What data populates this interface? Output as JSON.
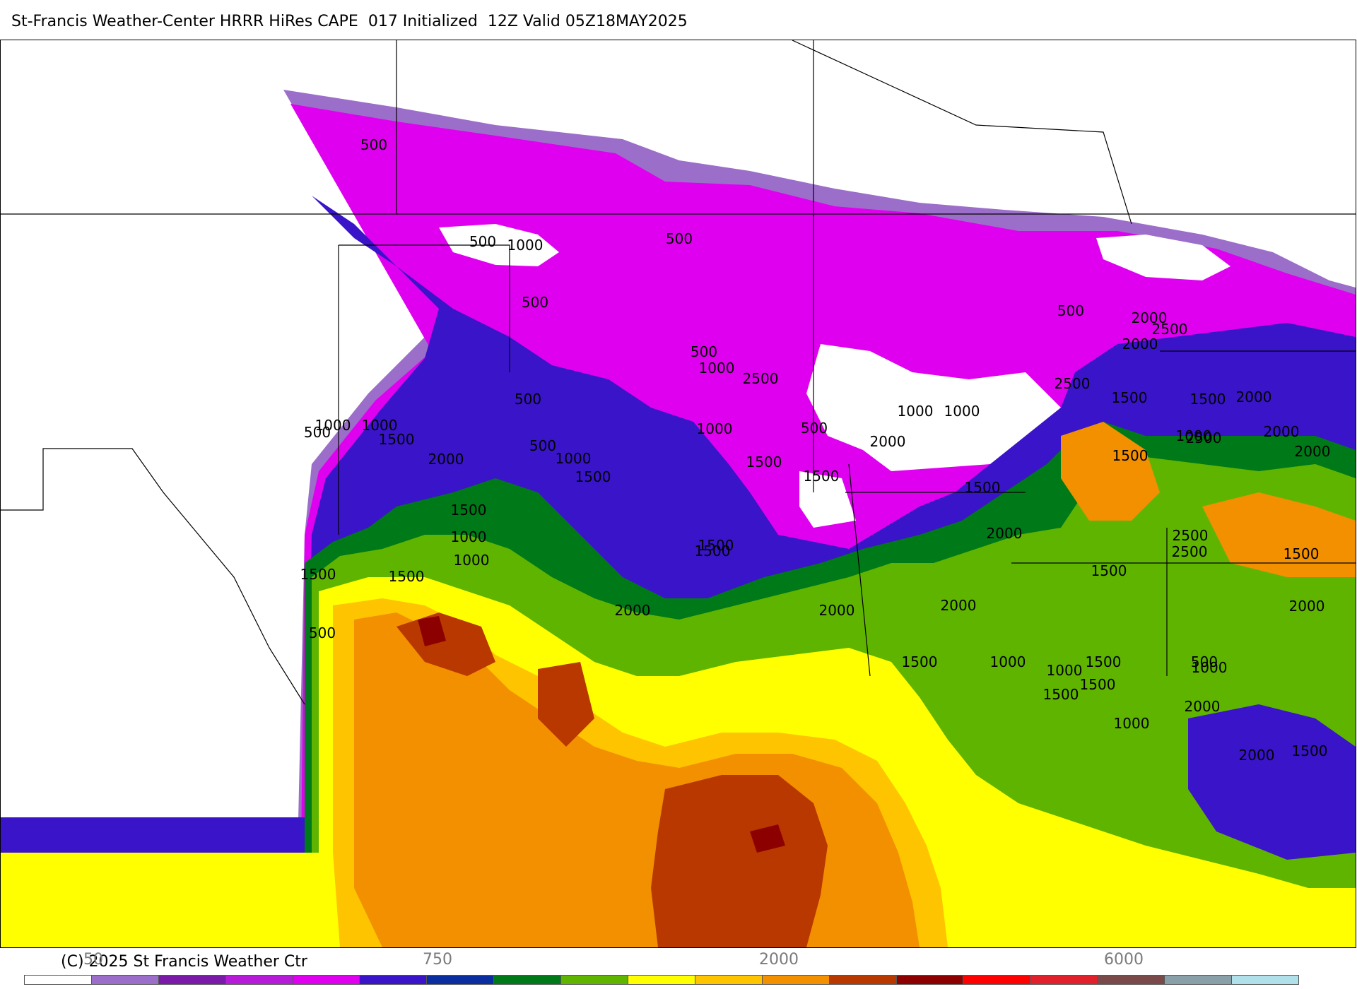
{
  "header": {
    "title": "St-Francis Weather-Center HRRR HiRes CAPE  017 Initialized  12Z Valid 05Z18MAY2025"
  },
  "footer": {
    "copyright": "(C) 2025 St Francis Weather Ctr"
  },
  "colorbar": {
    "tick_labels": [
      "50",
      "750",
      "2000",
      "6000"
    ],
    "colors": [
      "#ffffff",
      "#9b6fc9",
      "#7a1aa8",
      "#b61cd8",
      "#e000f0",
      "#3a14c8",
      "#0a2ea0",
      "#007a18",
      "#5fb400",
      "#ffff00",
      "#ffc400",
      "#f29000",
      "#b83800",
      "#8c0000",
      "#ff0000",
      "#e0202a",
      "#7a4a4a",
      "#8aa0a8",
      "#b0e0ea"
    ]
  },
  "map": {
    "contour_labels": [
      "500",
      "500",
      "1000",
      "500",
      "500",
      "500",
      "1000",
      "500",
      "500",
      "1000",
      "500",
      "1000",
      "1500",
      "2000",
      "500",
      "1000",
      "1500",
      "1500",
      "2500",
      "1000",
      "1500",
      "2000",
      "1500",
      "2000",
      "1500",
      "1000",
      "1000",
      "1500",
      "2500",
      "2000",
      "2500",
      "2000",
      "500",
      "1500",
      "2000",
      "1500",
      "2000",
      "2500",
      "2000",
      "2000",
      "1500",
      "2500",
      "2500",
      "1000",
      "2000",
      "2000",
      "1500",
      "1500",
      "2000",
      "1500",
      "1500",
      "1000",
      "1000",
      "1500",
      "1500",
      "500",
      "1000",
      "1500",
      "1500",
      "500",
      "1000",
      "2000",
      "1500",
      "1000",
      "1500",
      "2000",
      "1000"
    ],
    "state_names": [],
    "legend_colors": {
      "cape_low": "#b61cd8",
      "cape_mid": "#5fb400",
      "cape_high": "#f29000",
      "cape_extreme": "#8c0000"
    }
  }
}
